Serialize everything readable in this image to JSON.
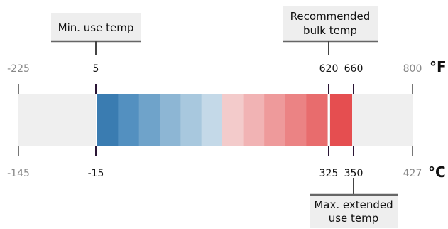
{
  "scale": {
    "fahrenheit": {
      "unit": "°F",
      "min": "-225",
      "max": "800",
      "marks": [
        "5",
        "620",
        "660"
      ]
    },
    "celsius": {
      "unit": "°C",
      "min": "-145",
      "max": "427",
      "marks": [
        "-15",
        "325",
        "350"
      ]
    }
  },
  "callouts": {
    "min_use": "Min. use temp",
    "bulk": [
      "Recommended",
      "bulk temp"
    ],
    "extended": [
      "Max. extended",
      "use temp"
    ]
  },
  "colors": {
    "track": "#efefef",
    "blue_shades": [
      "#3a7cb1",
      "#5390c0",
      "#6fa3ca",
      "#8db6d4",
      "#a8c8de",
      "#c4d9e8"
    ],
    "red_shades": [
      "#f3cbcb",
      "#f1b3b4",
      "#ee9a9b",
      "#eb8384",
      "#e86c6d",
      "#e54e50"
    ],
    "callout_box": "#eeeeee",
    "tick_dark": "#2a1535",
    "tick_gray": "#777777"
  }
}
